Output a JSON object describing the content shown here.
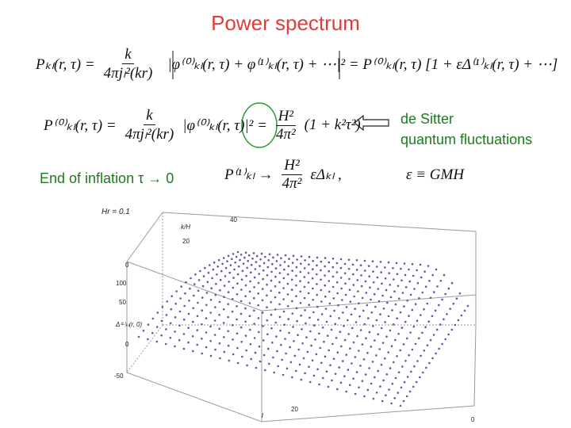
{
  "header": {
    "title": "Power spectrum"
  },
  "equations": [
    {
      "lhs": "Pₖₗ(r, τ) =",
      "num": "k",
      "den": "4πjₗ²(kr)",
      "rhs": "|φ⁽⁰⁾ₖₗ(r, τ) + φ⁽¹⁾ₖₗ(r, τ) + ⋯|² = P⁽⁰⁾ₖₗ(r, τ) [1 + εΔ⁽¹⁾ₖₗ(r, τ) + ⋯]"
    },
    {
      "lhs": "P⁽⁰⁾ₖₗ(r, τ) =",
      "num": "k",
      "den": "4πjₗ²(kr)",
      "mid": "|φ⁽⁰⁾ₖₗ(r, τ)|² =",
      "num2": "H²",
      "den2": "4π²",
      "rhs": "(1 + k²τ²)"
    },
    {
      "lhs": "P⁽¹⁾ₖₗ  →",
      "num": "H²",
      "den": "4π²",
      "rhs": "εΔₖₗ ,"
    },
    {
      "text": "ε ≡ GMH"
    }
  ],
  "annotations": {
    "de_sitter": "de Sitter",
    "quantum": "quantum fluctuations",
    "end_of_inflation": "End of inflation τ → 0"
  },
  "plot": {
    "labels": [
      "Hr = 0.1",
      "k/H",
      "40",
      "20",
      "0",
      "100",
      "50",
      "Δ⁽¹⁾ₖₗ(r, 0)",
      "0",
      "-50",
      "l",
      "20",
      "0"
    ]
  }
}
